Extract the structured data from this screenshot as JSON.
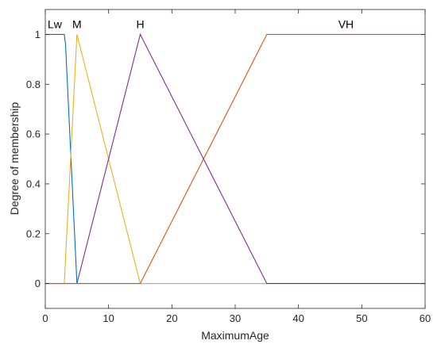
{
  "chart_data": {
    "type": "line",
    "title": "",
    "xlabel": "MaximumAge",
    "ylabel": "Degree of membership",
    "xlim": [
      0,
      60
    ],
    "ylim": [
      -0.1,
      1.1
    ],
    "xticks": [
      0,
      10,
      20,
      30,
      40,
      50,
      60
    ],
    "yticks": [
      0,
      0.2,
      0.4,
      0.6,
      0.8,
      1
    ],
    "xtick_labels": [
      "0",
      "10",
      "20",
      "30",
      "40",
      "50",
      "60"
    ],
    "ytick_labels": [
      "0",
      "0.2",
      "0.4",
      "0.6",
      "0.8",
      "1"
    ],
    "grid": false,
    "legend": "none",
    "series": [
      {
        "name": "Lw",
        "color": "#0072BD",
        "x": [
          0,
          3,
          3.2,
          5,
          60
        ],
        "y": [
          1,
          1,
          0.96,
          0,
          0
        ]
      },
      {
        "name": "M",
        "color": "#EDB120",
        "x": [
          0,
          3,
          5,
          15,
          60
        ],
        "y": [
          0,
          0,
          1,
          0,
          0
        ]
      },
      {
        "name": "H",
        "color": "#7E2F8E",
        "x": [
          0,
          5,
          15,
          35,
          60
        ],
        "y": [
          0,
          0,
          1,
          0,
          0
        ]
      },
      {
        "name": "VH",
        "color": "#D95319",
        "x": [
          0,
          15,
          35,
          60
        ],
        "y": [
          0,
          0,
          1,
          1
        ]
      }
    ],
    "annotations": [
      {
        "text": "Lw",
        "x": 1.5
      },
      {
        "text": "M",
        "x": 5
      },
      {
        "text": "H",
        "x": 15
      },
      {
        "text": "VH",
        "x": 47.5
      }
    ]
  }
}
